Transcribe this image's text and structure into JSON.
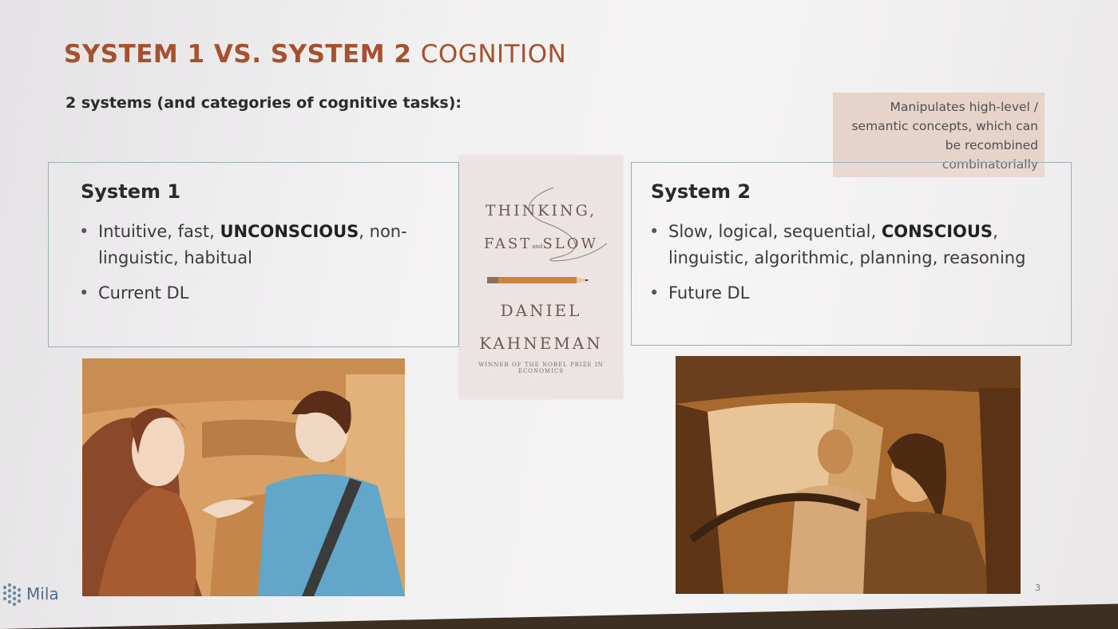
{
  "slide": {
    "title_bold": "SYSTEM 1 VS. SYSTEM 2",
    "title_light": "COGNITION",
    "subtitle": "2 systems (and categories of cognitive tasks):",
    "note": [
      "Manipulates high-level /",
      "semantic concepts, which can",
      "be recombined",
      "combinatorially"
    ],
    "page_number": "3"
  },
  "system1": {
    "heading": "System 1",
    "bullet1_pre": "Intuitive, fast, ",
    "bullet1_strong": "UNCONSCIOUS",
    "bullet1_post": ", non-",
    "bullet1_line2": "linguistic, habitual",
    "bullet2": "Current DL"
  },
  "system2": {
    "heading": "System 2",
    "bullet1_pre": "Slow, logical, sequential, ",
    "bullet1_strong": "CONSCIOUS",
    "bullet1_post": ",",
    "bullet1_line2": "linguistic, algorithmic, planning, reasoning",
    "bullet2": "Future DL"
  },
  "book": {
    "title_line1": "THINKING,",
    "title_line2_a": "FAST",
    "title_line2_b": "and",
    "title_line2_c": "SLOW",
    "author_line1": "DANIEL",
    "author_line2": "KAHNEMAN",
    "tagline": "WINNER OF THE NOBEL PRIZE IN ECONOMICS"
  },
  "logo": {
    "text": "Mila"
  },
  "colors": {
    "title": "#a5512c",
    "box_border": "#97b0c0",
    "note_bg": "#e6d3ca",
    "logo": "#4f6d87"
  }
}
